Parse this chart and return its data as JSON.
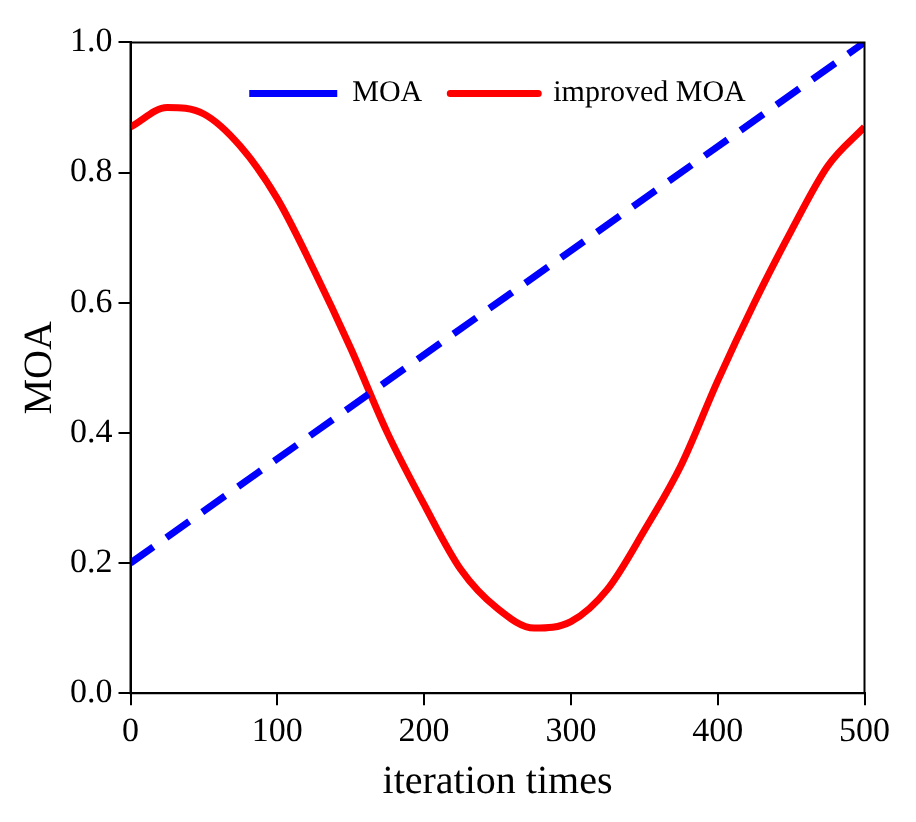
{
  "chart_data": {
    "type": "line",
    "xlabel": "iteration times",
    "ylabel": "MOA",
    "x": [
      0,
      25,
      50,
      75,
      100,
      125,
      150,
      175,
      200,
      225,
      250,
      275,
      300,
      325,
      350,
      375,
      400,
      425,
      450,
      475,
      500
    ],
    "series": [
      {
        "name": "MOA",
        "color": "#0000ff",
        "line_style": "dashed",
        "x": [
          0,
          500
        ],
        "values": [
          0.2,
          1.0
        ]
      },
      {
        "name": "improved MOA",
        "color": "#ff0000",
        "line_style": "solid",
        "values": [
          0.87,
          0.9,
          0.89,
          0.84,
          0.76,
          0.65,
          0.53,
          0.4,
          0.29,
          0.19,
          0.13,
          0.1,
          0.11,
          0.16,
          0.25,
          0.35,
          0.48,
          0.6,
          0.71,
          0.81,
          0.87
        ]
      }
    ],
    "xlim": [
      0,
      500
    ],
    "xticks": [
      0,
      100,
      200,
      300,
      400,
      500
    ],
    "ylim": [
      0,
      1
    ],
    "yticks": [
      {
        "value": 0,
        "label": "0.0"
      },
      0.2,
      0.4,
      0.6,
      0.8,
      {
        "value": 1,
        "label": "1.0"
      }
    ],
    "grid": false,
    "legend": "top",
    "marker": "none"
  }
}
